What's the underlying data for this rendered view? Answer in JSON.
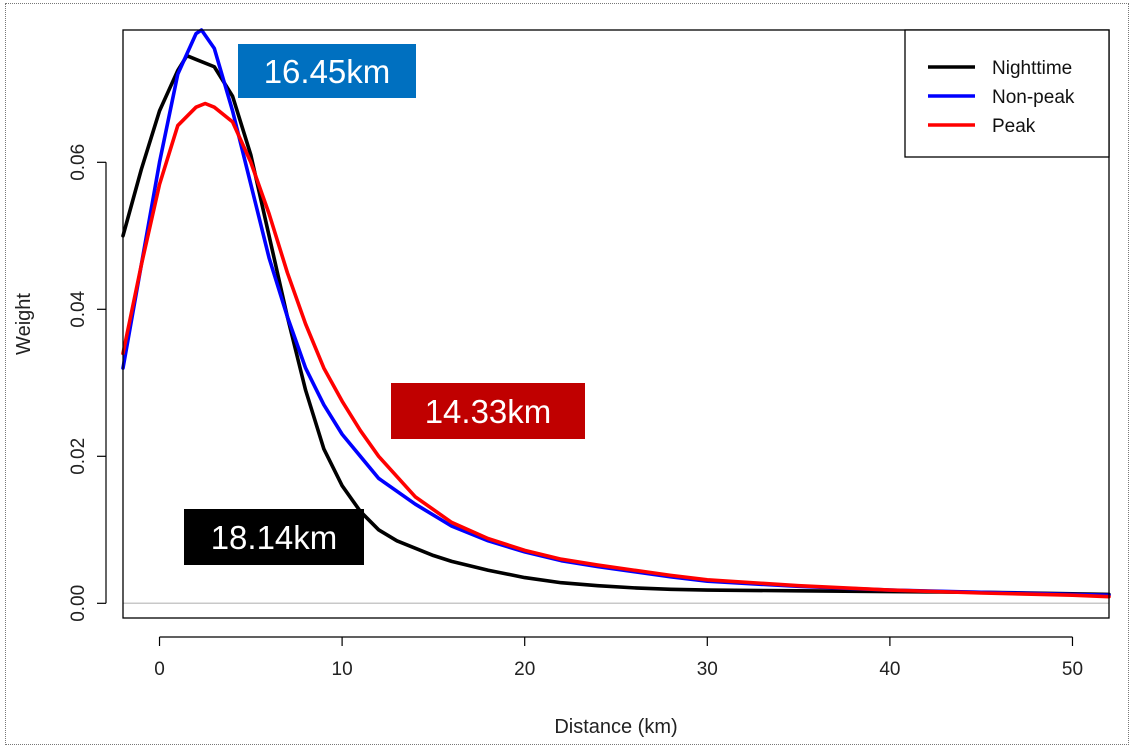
{
  "chart_data": {
    "type": "line",
    "title": "",
    "xlabel": "Distance (km)",
    "ylabel": "Weight",
    "xlim": [
      -2,
      52
    ],
    "ylim": [
      -0.002,
      0.078
    ],
    "xticks": [
      0,
      10,
      20,
      30,
      40,
      50
    ],
    "yticks": [
      0.0,
      0.02,
      0.04,
      0.06
    ],
    "ytick_labels": [
      "0.00",
      "0.02",
      "0.04",
      "0.06"
    ],
    "baseline": 0,
    "baseline_color": "#c8c8c8",
    "legend_position": "top-right",
    "series": [
      {
        "name": "Nighttime",
        "color": "#000000",
        "x": [
          -2,
          -1,
          0,
          1,
          1.5,
          2,
          3,
          4,
          5,
          6,
          7,
          8,
          9,
          10,
          11,
          12,
          13,
          14,
          15,
          16,
          18,
          20,
          22,
          24,
          26,
          28,
          30,
          35,
          40,
          45,
          50,
          52
        ],
        "y": [
          0.05,
          0.059,
          0.067,
          0.0725,
          0.0745,
          0.074,
          0.073,
          0.069,
          0.061,
          0.05,
          0.039,
          0.029,
          0.021,
          0.016,
          0.0125,
          0.01,
          0.0085,
          0.0075,
          0.0065,
          0.0057,
          0.0045,
          0.0035,
          0.0028,
          0.0024,
          0.0021,
          0.0019,
          0.0018,
          0.0017,
          0.0016,
          0.0015,
          0.0013,
          0.0012
        ]
      },
      {
        "name": "Non-peak",
        "color": "#0000ff",
        "x": [
          -2,
          -1,
          0,
          1,
          2,
          2.3,
          3,
          4,
          5,
          6,
          7,
          8,
          9,
          10,
          11,
          12,
          14,
          16,
          18,
          20,
          22,
          24,
          26,
          28,
          30,
          35,
          40,
          45,
          50,
          52
        ],
        "y": [
          0.032,
          0.046,
          0.06,
          0.072,
          0.0775,
          0.078,
          0.0755,
          0.067,
          0.057,
          0.047,
          0.039,
          0.032,
          0.027,
          0.023,
          0.02,
          0.017,
          0.0135,
          0.0105,
          0.0085,
          0.007,
          0.0058,
          0.005,
          0.0043,
          0.0036,
          0.003,
          0.0023,
          0.0018,
          0.0015,
          0.0012,
          0.0011
        ]
      },
      {
        "name": "Peak",
        "color": "#ff0000",
        "x": [
          -2,
          -1,
          0,
          1,
          2,
          2.5,
          3,
          4,
          5,
          6,
          7,
          8,
          9,
          10,
          11,
          12,
          14,
          16,
          18,
          20,
          22,
          24,
          26,
          28,
          30,
          35,
          40,
          45,
          50,
          52
        ],
        "y": [
          0.034,
          0.046,
          0.057,
          0.065,
          0.0675,
          0.068,
          0.0675,
          0.0655,
          0.06,
          0.053,
          0.045,
          0.038,
          0.032,
          0.0275,
          0.0235,
          0.02,
          0.0145,
          0.011,
          0.0088,
          0.0072,
          0.006,
          0.0052,
          0.0045,
          0.0038,
          0.0032,
          0.0024,
          0.0018,
          0.0014,
          0.0011,
          0.0009
        ]
      }
    ],
    "annotations": [
      {
        "id": "blue",
        "text": "16.45km",
        "color": "#0070c0"
      },
      {
        "id": "red",
        "text": "14.33km",
        "color": "#c00000"
      },
      {
        "id": "black",
        "text": "18.14km",
        "color": "#000000"
      }
    ]
  }
}
